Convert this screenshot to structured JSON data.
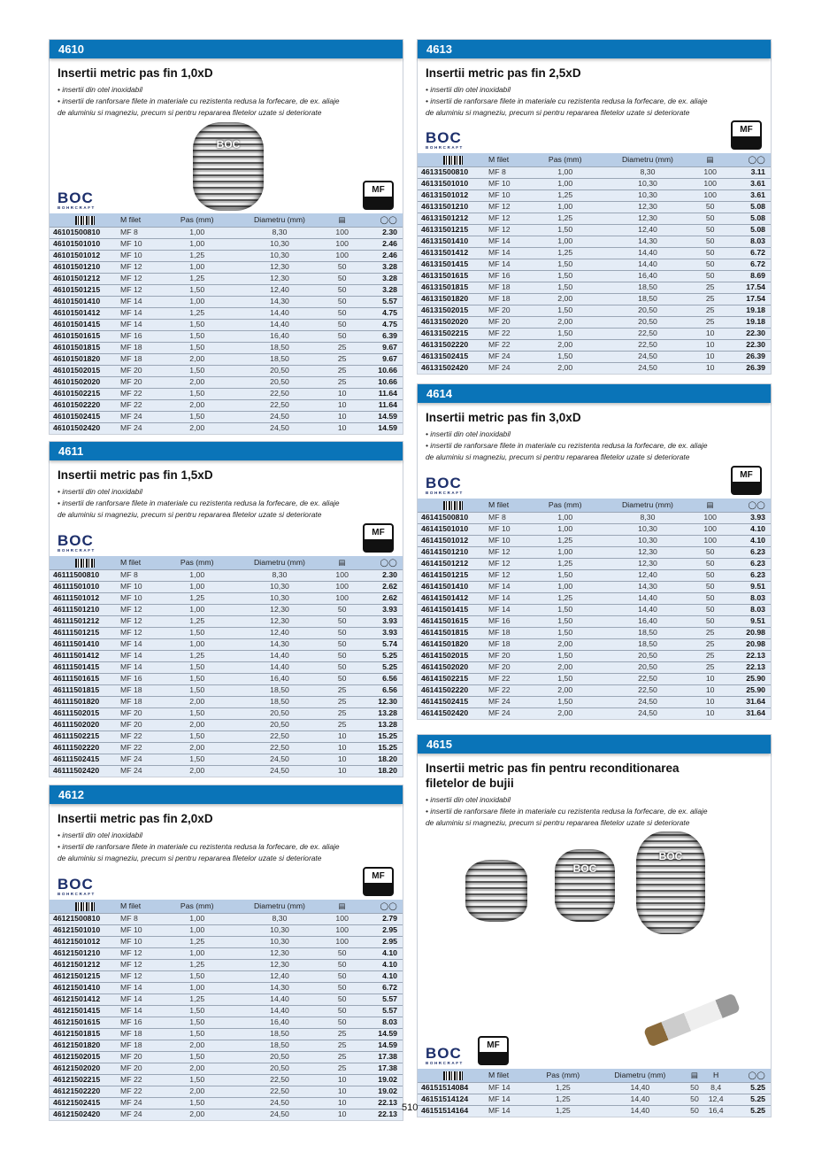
{
  "columns": {
    "mfilet": "M filet",
    "pas": "Pas (mm)",
    "diametru": "Diametru (mm)",
    "h": "H"
  },
  "brand": {
    "logo": "BOC",
    "sub": "BOHRCRAFT"
  },
  "badge": "MF",
  "bullets": [
    "• insertii din otel inoxidabil",
    "• insertii de ranforsare filete in materiale cu rezistenta redusa la forfecare, de ex. aliaje",
    "de aluminiu si magneziu, precum si pentru repararea filetelor uzate si deteriorate"
  ],
  "page_number": "510",
  "colors": {
    "header": "#0a74b8",
    "table_header": "#b8cde6",
    "row": "#e4ecf6"
  },
  "icons": {
    "code": "barcode-icon",
    "qty": "package-icon",
    "price": "coins-icon"
  },
  "sections": [
    {
      "id": "4610",
      "title": "Insertii metric pas fin 1,0xD",
      "rows": [
        [
          "46101500810",
          "MF 8",
          "1,00",
          "8,30",
          "100",
          "2.30"
        ],
        [
          "46101501010",
          "MF 10",
          "1,00",
          "10,30",
          "100",
          "2.46"
        ],
        [
          "46101501012",
          "MF 10",
          "1,25",
          "10,30",
          "100",
          "2.46"
        ],
        [
          "46101501210",
          "MF 12",
          "1,00",
          "12,30",
          "50",
          "3.28"
        ],
        [
          "46101501212",
          "MF 12",
          "1,25",
          "12,30",
          "50",
          "3.28"
        ],
        [
          "46101501215",
          "MF 12",
          "1,50",
          "12,40",
          "50",
          "3.28"
        ],
        [
          "46101501410",
          "MF 14",
          "1,00",
          "14,30",
          "50",
          "5.57"
        ],
        [
          "46101501412",
          "MF 14",
          "1,25",
          "14,40",
          "50",
          "4.75"
        ],
        [
          "46101501415",
          "MF 14",
          "1,50",
          "14,40",
          "50",
          "4.75"
        ],
        [
          "46101501615",
          "MF 16",
          "1,50",
          "16,40",
          "50",
          "6.39"
        ],
        [
          "46101501815",
          "MF 18",
          "1,50",
          "18,50",
          "25",
          "9.67"
        ],
        [
          "46101501820",
          "MF 18",
          "2,00",
          "18,50",
          "25",
          "9.67"
        ],
        [
          "46101502015",
          "MF 20",
          "1,50",
          "20,50",
          "25",
          "10.66"
        ],
        [
          "46101502020",
          "MF 20",
          "2,00",
          "20,50",
          "25",
          "10.66"
        ],
        [
          "46101502215",
          "MF 22",
          "1,50",
          "22,50",
          "10",
          "11.64"
        ],
        [
          "46101502220",
          "MF 22",
          "2,00",
          "22,50",
          "10",
          "11.64"
        ],
        [
          "46101502415",
          "MF 24",
          "1,50",
          "24,50",
          "10",
          "14.59"
        ],
        [
          "46101502420",
          "MF 24",
          "2,00",
          "24,50",
          "10",
          "14.59"
        ]
      ]
    },
    {
      "id": "4611",
      "title": "Insertii metric pas fin 1,5xD",
      "rows": [
        [
          "46111500810",
          "MF 8",
          "1,00",
          "8,30",
          "100",
          "2.30"
        ],
        [
          "46111501010",
          "MF 10",
          "1,00",
          "10,30",
          "100",
          "2.62"
        ],
        [
          "46111501012",
          "MF 10",
          "1,25",
          "10,30",
          "100",
          "2.62"
        ],
        [
          "46111501210",
          "MF 12",
          "1,00",
          "12,30",
          "50",
          "3.93"
        ],
        [
          "46111501212",
          "MF 12",
          "1,25",
          "12,30",
          "50",
          "3.93"
        ],
        [
          "46111501215",
          "MF 12",
          "1,50",
          "12,40",
          "50",
          "3.93"
        ],
        [
          "46111501410",
          "MF 14",
          "1,00",
          "14,30",
          "50",
          "5.74"
        ],
        [
          "46111501412",
          "MF 14",
          "1,25",
          "14,40",
          "50",
          "5.25"
        ],
        [
          "46111501415",
          "MF 14",
          "1,50",
          "14,40",
          "50",
          "5.25"
        ],
        [
          "46111501615",
          "MF 16",
          "1,50",
          "16,40",
          "50",
          "6.56"
        ],
        [
          "46111501815",
          "MF 18",
          "1,50",
          "18,50",
          "25",
          "6.56"
        ],
        [
          "46111501820",
          "MF 18",
          "2,00",
          "18,50",
          "25",
          "12.30"
        ],
        [
          "46111502015",
          "MF 20",
          "1,50",
          "20,50",
          "25",
          "13.28"
        ],
        [
          "46111502020",
          "MF 20",
          "2,00",
          "20,50",
          "25",
          "13.28"
        ],
        [
          "46111502215",
          "MF 22",
          "1,50",
          "22,50",
          "10",
          "15.25"
        ],
        [
          "46111502220",
          "MF 22",
          "2,00",
          "22,50",
          "10",
          "15.25"
        ],
        [
          "46111502415",
          "MF 24",
          "1,50",
          "24,50",
          "10",
          "18.20"
        ],
        [
          "46111502420",
          "MF 24",
          "2,00",
          "24,50",
          "10",
          "18.20"
        ]
      ]
    },
    {
      "id": "4612",
      "title": "Insertii metric pas fin 2,0xD",
      "rows": [
        [
          "46121500810",
          "MF 8",
          "1,00",
          "8,30",
          "100",
          "2.79"
        ],
        [
          "46121501010",
          "MF 10",
          "1,00",
          "10,30",
          "100",
          "2.95"
        ],
        [
          "46121501012",
          "MF 10",
          "1,25",
          "10,30",
          "100",
          "2.95"
        ],
        [
          "46121501210",
          "MF 12",
          "1,00",
          "12,30",
          "50",
          "4.10"
        ],
        [
          "46121501212",
          "MF 12",
          "1,25",
          "12,30",
          "50",
          "4.10"
        ],
        [
          "46121501215",
          "MF 12",
          "1,50",
          "12,40",
          "50",
          "4.10"
        ],
        [
          "46121501410",
          "MF 14",
          "1,00",
          "14,30",
          "50",
          "6.72"
        ],
        [
          "46121501412",
          "MF 14",
          "1,25",
          "14,40",
          "50",
          "5.57"
        ],
        [
          "46121501415",
          "MF 14",
          "1,50",
          "14,40",
          "50",
          "5.57"
        ],
        [
          "46121501615",
          "MF 16",
          "1,50",
          "16,40",
          "50",
          "8.03"
        ],
        [
          "46121501815",
          "MF 18",
          "1,50",
          "18,50",
          "25",
          "14.59"
        ],
        [
          "46121501820",
          "MF 18",
          "2,00",
          "18,50",
          "25",
          "14.59"
        ],
        [
          "46121502015",
          "MF 20",
          "1,50",
          "20,50",
          "25",
          "17.38"
        ],
        [
          "46121502020",
          "MF 20",
          "2,00",
          "20,50",
          "25",
          "17.38"
        ],
        [
          "46121502215",
          "MF 22",
          "1,50",
          "22,50",
          "10",
          "19.02"
        ],
        [
          "46121502220",
          "MF 22",
          "2,00",
          "22,50",
          "10",
          "19.02"
        ],
        [
          "46121502415",
          "MF 24",
          "1,50",
          "24,50",
          "10",
          "22.13"
        ],
        [
          "46121502420",
          "MF 24",
          "2,00",
          "24,50",
          "10",
          "22.13"
        ]
      ]
    },
    {
      "id": "4613",
      "title": "Insertii metric pas fin 2,5xD",
      "rows": [
        [
          "46131500810",
          "MF 8",
          "1,00",
          "8,30",
          "100",
          "3.11"
        ],
        [
          "46131501010",
          "MF 10",
          "1,00",
          "10,30",
          "100",
          "3.61"
        ],
        [
          "46131501012",
          "MF 10",
          "1,25",
          "10,30",
          "100",
          "3.61"
        ],
        [
          "46131501210",
          "MF 12",
          "1,00",
          "12,30",
          "50",
          "5.08"
        ],
        [
          "46131501212",
          "MF 12",
          "1,25",
          "12,30",
          "50",
          "5.08"
        ],
        [
          "46131501215",
          "MF 12",
          "1,50",
          "12,40",
          "50",
          "5.08"
        ],
        [
          "46131501410",
          "MF 14",
          "1,00",
          "14,30",
          "50",
          "8.03"
        ],
        [
          "46131501412",
          "MF 14",
          "1,25",
          "14,40",
          "50",
          "6.72"
        ],
        [
          "46131501415",
          "MF 14",
          "1,50",
          "14,40",
          "50",
          "6.72"
        ],
        [
          "46131501615",
          "MF 16",
          "1,50",
          "16,40",
          "50",
          "8.69"
        ],
        [
          "46131501815",
          "MF 18",
          "1,50",
          "18,50",
          "25",
          "17.54"
        ],
        [
          "46131501820",
          "MF 18",
          "2,00",
          "18,50",
          "25",
          "17.54"
        ],
        [
          "46131502015",
          "MF 20",
          "1,50",
          "20,50",
          "25",
          "19.18"
        ],
        [
          "46131502020",
          "MF 20",
          "2,00",
          "20,50",
          "25",
          "19.18"
        ],
        [
          "46131502215",
          "MF 22",
          "1,50",
          "22,50",
          "10",
          "22.30"
        ],
        [
          "46131502220",
          "MF 22",
          "2,00",
          "22,50",
          "10",
          "22.30"
        ],
        [
          "46131502415",
          "MF 24",
          "1,50",
          "24,50",
          "10",
          "26.39"
        ],
        [
          "46131502420",
          "MF 24",
          "2,00",
          "24,50",
          "10",
          "26.39"
        ]
      ]
    },
    {
      "id": "4614",
      "title": "Insertii metric pas fin 3,0xD",
      "rows": [
        [
          "46141500810",
          "MF 8",
          "1,00",
          "8,30",
          "100",
          "3.93"
        ],
        [
          "46141501010",
          "MF 10",
          "1,00",
          "10,30",
          "100",
          "4.10"
        ],
        [
          "46141501012",
          "MF 10",
          "1,25",
          "10,30",
          "100",
          "4.10"
        ],
        [
          "46141501210",
          "MF 12",
          "1,00",
          "12,30",
          "50",
          "6.23"
        ],
        [
          "46141501212",
          "MF 12",
          "1,25",
          "12,30",
          "50",
          "6.23"
        ],
        [
          "46141501215",
          "MF 12",
          "1,50",
          "12,40",
          "50",
          "6.23"
        ],
        [
          "46141501410",
          "MF 14",
          "1,00",
          "14,30",
          "50",
          "9.51"
        ],
        [
          "46141501412",
          "MF 14",
          "1,25",
          "14,40",
          "50",
          "8.03"
        ],
        [
          "46141501415",
          "MF 14",
          "1,50",
          "14,40",
          "50",
          "8.03"
        ],
        [
          "46141501615",
          "MF 16",
          "1,50",
          "16,40",
          "50",
          "9.51"
        ],
        [
          "46141501815",
          "MF 18",
          "1,50",
          "18,50",
          "25",
          "20.98"
        ],
        [
          "46141501820",
          "MF 18",
          "2,00",
          "18,50",
          "25",
          "20.98"
        ],
        [
          "46141502015",
          "MF 20",
          "1,50",
          "20,50",
          "25",
          "22.13"
        ],
        [
          "46141502020",
          "MF 20",
          "2,00",
          "20,50",
          "25",
          "22.13"
        ],
        [
          "46141502215",
          "MF 22",
          "1,50",
          "22,50",
          "10",
          "25.90"
        ],
        [
          "46141502220",
          "MF 22",
          "2,00",
          "22,50",
          "10",
          "25.90"
        ],
        [
          "46141502415",
          "MF 24",
          "1,50",
          "24,50",
          "10",
          "31.64"
        ],
        [
          "46141502420",
          "MF 24",
          "2,00",
          "24,50",
          "10",
          "31.64"
        ]
      ]
    },
    {
      "id": "4615",
      "title": "Insertii metric pas fin pentru reconditionarea filetelor de bujii",
      "rows": [
        [
          "46151514084",
          "MF 14",
          "1,25",
          "14,40",
          "50",
          "8,4",
          "5.25"
        ],
        [
          "46151514124",
          "MF 14",
          "1,25",
          "14,40",
          "50",
          "12,4",
          "5.25"
        ],
        [
          "46151514164",
          "MF 14",
          "1,25",
          "14,40",
          "50",
          "16,4",
          "5.25"
        ]
      ]
    }
  ]
}
